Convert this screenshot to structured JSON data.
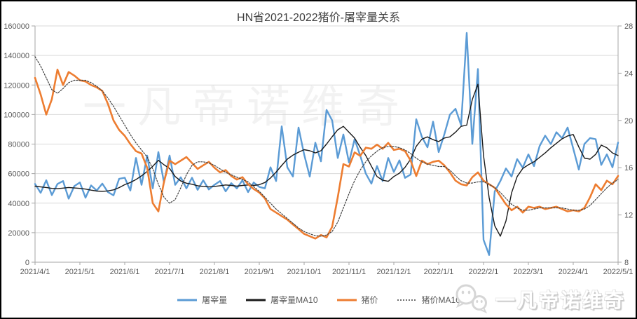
{
  "title": "HN省2021-2022猪价-屠宰量关系",
  "watermark": "一凡帝诺维奇",
  "logo": {
    "icon": "wechat-icon",
    "text": "一凡帝诺维奇"
  },
  "colors": {
    "slaughter": "#5B9BD5",
    "slaughter_ma10": "#1a1a1a",
    "price": "#ED7D31",
    "price_ma10": "#404040",
    "grid": "#d9d9d9",
    "axis_line": "#a6a6a6",
    "axis_text": "#595959",
    "title_text": "#404040"
  },
  "chart_data": {
    "type": "line",
    "title": "HN省2021-2022猪价-屠宰量关系",
    "grid": "horizontal",
    "legend_position": "bottom",
    "samples_per_month": 8,
    "x_tick_labels": [
      "2021/4/1",
      "2021/5/1",
      "2021/6/1",
      "2021/7/1",
      "2021/8/1",
      "2021/9/1",
      "2021/10/1",
      "2021/11/1",
      "2021/12/1",
      "2022/1/1",
      "2022/2/1",
      "2022/3/1",
      "2022/4/1",
      "2022/5/1"
    ],
    "left_axis": {
      "min": 0,
      "max": 160000,
      "step": 20000,
      "tick_labels": [
        "0",
        "20000",
        "40000",
        "60000",
        "80000",
        "100000",
        "120000",
        "140000",
        "160000"
      ]
    },
    "right_axis": {
      "min": 8,
      "max": 28,
      "step": 4,
      "tick_labels": [
        "8",
        "12",
        "16",
        "20",
        "24",
        "28"
      ]
    },
    "series": [
      {
        "key": "slaughter",
        "name": "屠宰量",
        "axis": "left",
        "style": "solid",
        "color": "#5B9BD5",
        "width": 2.4,
        "values": [
          53000,
          47000,
          55500,
          45500,
          53000,
          55000,
          43000,
          51500,
          54000,
          43700,
          52000,
          48500,
          53200,
          47500,
          45300,
          56500,
          57200,
          48500,
          70600,
          52400,
          72200,
          50000,
          74600,
          54000,
          72200,
          52400,
          57500,
          50000,
          57200,
          49000,
          55500,
          49300,
          52400,
          55000,
          48000,
          53500,
          50000,
          55500,
          47500,
          54000,
          51000,
          50000,
          64300,
          55000,
          92000,
          64300,
          58000,
          91200,
          73000,
          58000,
          80900,
          68300,
          103100,
          96000,
          70600,
          86500,
          67500,
          83300,
          72200,
          60000,
          53200,
          65100,
          55000,
          70600,
          61100,
          69000,
          57100,
          59400,
          96800,
          84900,
          77800,
          95200,
          74600,
          86500,
          99900,
          103900,
          92800,
          155300,
          80100,
          130800,
          15200,
          4900,
          48000,
          55000,
          63500,
          58000,
          69800,
          64000,
          73000,
          65100,
          78600,
          85700,
          80000,
          88000,
          84000,
          91200,
          77000,
          62700,
          80100,
          84100,
          83300,
          65900,
          73000,
          64300,
          81000
        ]
      },
      {
        "key": "slaughter-ma10",
        "name": "屠宰量MA10",
        "axis": "left",
        "style": "solid",
        "color": "#1a1a1a",
        "width": 1.4,
        "values": [
          51500,
          51000,
          50600,
          50000,
          49800,
          50200,
          50600,
          50300,
          50000,
          49500,
          48800,
          48200,
          48000,
          48300,
          49000,
          50500,
          52500,
          54000,
          56000,
          58500,
          61500,
          65000,
          69000,
          66000,
          63500,
          58000,
          55000,
          53500,
          52800,
          51800,
          51300,
          51000,
          51300,
          51800,
          52300,
          52000,
          51500,
          52000,
          52300,
          52000,
          52500,
          54000,
          57000,
          61000,
          65500,
          69800,
          72500,
          74500,
          76200,
          75500,
          74000,
          75500,
          80000,
          85000,
          89700,
          92000,
          88000,
          84100,
          77800,
          72200,
          65000,
          58000,
          55500,
          54800,
          58000,
          60300,
          64300,
          69800,
          78500,
          83300,
          84900,
          83000,
          81700,
          84100,
          84900,
          88000,
          92000,
          92800,
          110200,
          120500,
          72200,
          43700,
          24700,
          17600,
          27900,
          46900,
          58000,
          63500,
          66000,
          68000,
          71000,
          74000,
          77500,
          80500,
          83500,
          85500,
          86500,
          78000,
          70500,
          69800,
          73000,
          79300,
          77500,
          74000,
          72200
        ]
      },
      {
        "key": "price",
        "name": "猪价",
        "axis": "right",
        "style": "solid",
        "color": "#ED7D31",
        "width": 2.6,
        "values": [
          23.6,
          22.2,
          20.5,
          21.8,
          24.3,
          23.0,
          24.1,
          23.8,
          23.4,
          23.3,
          23.0,
          22.8,
          22.5,
          21.4,
          20.0,
          19.2,
          18.7,
          18.0,
          17.4,
          17.2,
          16.0,
          13.0,
          12.3,
          14.8,
          16.6,
          16.3,
          16.6,
          16.9,
          16.4,
          15.9,
          16.2,
          16.5,
          16.0,
          15.6,
          15.8,
          15.3,
          15.0,
          15.2,
          14.6,
          14.2,
          13.9,
          13.4,
          12.5,
          12.2,
          11.9,
          11.6,
          11.2,
          10.8,
          10.4,
          10.2,
          10.0,
          10.3,
          10.1,
          11.0,
          13.5,
          16.3,
          16.1,
          17.3,
          17.0,
          17.7,
          17.6,
          17.95,
          17.6,
          18.1,
          17.5,
          17.6,
          17.4,
          16.6,
          15.3,
          16.6,
          16.3,
          16.5,
          16.6,
          16.2,
          15.6,
          14.9,
          14.6,
          14.5,
          15.2,
          15.6,
          14.9,
          14.6,
          14.3,
          13.6,
          12.9,
          12.4,
          12.7,
          12.2,
          12.7,
          12.6,
          12.7,
          12.5,
          12.6,
          12.7,
          12.5,
          12.3,
          12.4,
          12.3,
          12.6,
          13.5,
          14.6,
          14.1,
          14.9,
          14.6,
          15.3
        ]
      },
      {
        "key": "price-ma10",
        "name": "猪价MA10",
        "axis": "right",
        "style": "dotted",
        "color": "#404040",
        "width": 1.2,
        "values": [
          25.4,
          24.6,
          23.6,
          22.6,
          22.3,
          22.7,
          23.2,
          23.4,
          23.4,
          23.4,
          23.2,
          22.9,
          22.5,
          21.9,
          21.2,
          20.4,
          19.6,
          18.8,
          18.1,
          17.5,
          16.9,
          15.9,
          14.6,
          13.5,
          13.0,
          13.3,
          14.3,
          15.4,
          16.2,
          16.5,
          16.5,
          16.4,
          16.2,
          15.9,
          15.6,
          15.4,
          15.2,
          15.0,
          14.8,
          14.4,
          14.0,
          13.5,
          13.0,
          12.5,
          12.1,
          11.7,
          11.3,
          10.9,
          10.6,
          10.4,
          10.25,
          10.2,
          10.3,
          10.6,
          11.4,
          12.6,
          13.8,
          14.9,
          15.8,
          16.5,
          17.0,
          17.4,
          17.7,
          17.8,
          17.8,
          17.7,
          17.5,
          17.2,
          16.8,
          16.5,
          16.3,
          16.2,
          16.1,
          16.1,
          15.8,
          15.3,
          14.9,
          14.7,
          14.7,
          14.8,
          14.8,
          14.6,
          14.3,
          13.9,
          13.4,
          12.9,
          12.6,
          12.4,
          12.4,
          12.5,
          12.6,
          12.6,
          12.6,
          12.6,
          12.6,
          12.5,
          12.4,
          12.4,
          12.5,
          12.8,
          13.3,
          13.8,
          14.3,
          14.7,
          15.0
        ]
      }
    ]
  }
}
